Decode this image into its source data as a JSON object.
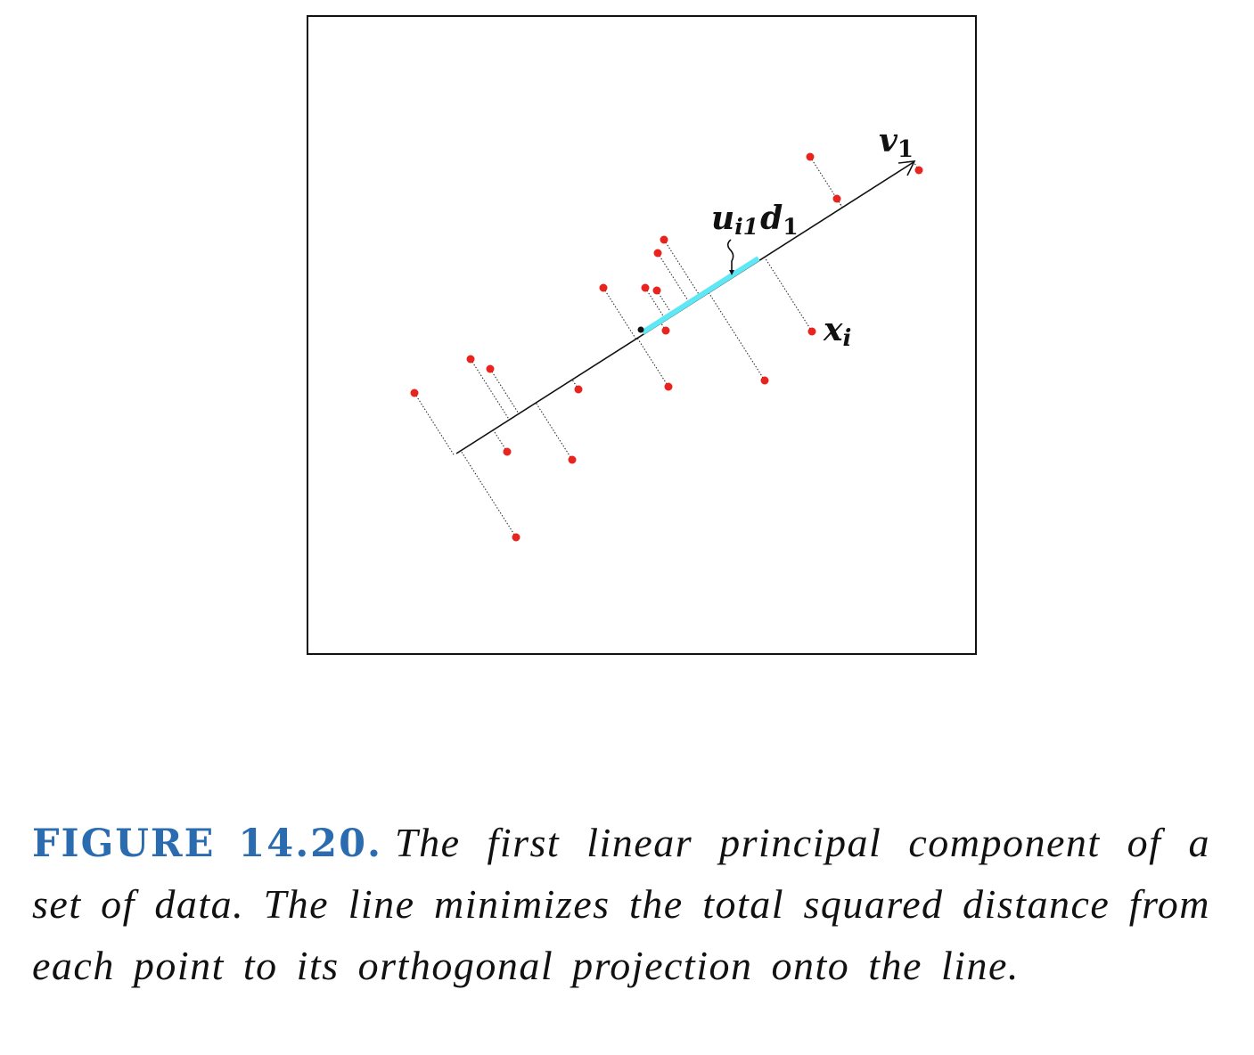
{
  "figure": {
    "labels": {
      "v": {
        "main": "v",
        "sub": "1"
      },
      "ud": {
        "u": "u",
        "u_sub": "i1",
        "d": "d",
        "d_sub": "1"
      },
      "x": {
        "main": "x",
        "sub": "i"
      }
    },
    "colors": {
      "points": "#e8241e",
      "projection_segment": "#5ee8f5",
      "line": "#111111",
      "frame": "#111111"
    }
  },
  "caption": {
    "number": "FIGURE 14.20.",
    "text": "The first linear principal component of a set of data. The line minimizes the total squared distance from each point to its orthogonal projection onto the line."
  }
}
